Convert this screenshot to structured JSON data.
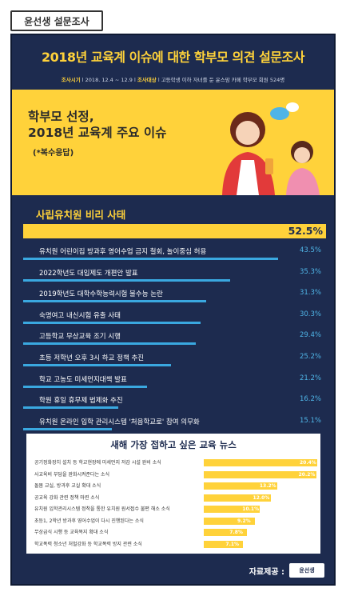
{
  "tag": "윤선생 설문조사",
  "header": {
    "title": "2018년 교육계 이슈에 대한 학부모 의견 설문조사",
    "period_label": "조사시기",
    "period_value": "2018. 12.4 ~ 12.9",
    "target_label": "조사대상",
    "target_value": "고등학생 이하 자녀를 둔 윤스맘 카페 학부모 회원 524명"
  },
  "hero": {
    "title_line1": "학부모 선정,",
    "title_line2": "2018년 교육계 주요 이슈",
    "subtitle": "(*복수응답)"
  },
  "chart_data": [
    {
      "type": "bar",
      "unit": "%",
      "categories": [
        "사립유치원 비리 사태",
        "유치원 어린이집 방과후 영어수업 금지 철회, 놀이중심 허용",
        "2022학년도 대입제도 개편안 발표",
        "2019학년도 대학수학능력시험 불수능 논란",
        "숙명여고 내신시험 유출 사태",
        "고등학교 무상교육 조기 시행",
        "초등 저학년 오후 3시 하교 정책 추진",
        "학교 고농도 미세먼지대책 발표",
        "학원 휴일 휴무제 법제화 추진",
        "유치원 온라인 입학 관리시스템 '처음학교로' 참여 의무화"
      ],
      "values": [
        52.5,
        43.5,
        35.3,
        31.3,
        30.3,
        29.4,
        25.2,
        21.2,
        16.2,
        15.1
      ],
      "labels": [
        "52.5%",
        "43.5%",
        "35.3%",
        "31.3%",
        "30.3%",
        "29.4%",
        "25.2%",
        "21.2%",
        "16.2%",
        "15.1%"
      ]
    },
    {
      "type": "bar",
      "unit": "%",
      "title": "새해 가장 접하고 싶은 교육 뉴스",
      "categories": [
        "공기정화장치 설치 등 학교현장에 미세먼지 저감 시설 완비 소식",
        "사교육비 부담을 완화시켜준다는 소식",
        "돌봄 교실, 방과후 교실 확대 소식",
        "공교육 강화 관련 정책 마련 소식",
        "유치원 입학관리시스템 정착을 통한 유치원 원서접수 불편 해소 소식",
        "초등1, 2학년 방과후 영어수업이 다시 진행된다는 소식",
        "무상급식 시행 등 교육복지 확대 소식",
        "학교폭력 청소년 처벌강화 등 학교폭력 방지 관련 소식"
      ],
      "values": [
        20.4,
        20.2,
        13.2,
        12.0,
        10.1,
        9.2,
        7.8,
        7.1
      ],
      "labels": [
        "20.4%",
        "20.2%",
        "13.2%",
        "12.0%",
        "10.1%",
        "9.2%",
        "7.8%",
        "7.1%"
      ]
    }
  ],
  "footer": {
    "label": "자료제공 :",
    "logo_text": "윤선생"
  },
  "colors": {
    "navy": "#1d2b4f",
    "yellow": "#ffd23a",
    "blue": "#3aa8e0"
  }
}
